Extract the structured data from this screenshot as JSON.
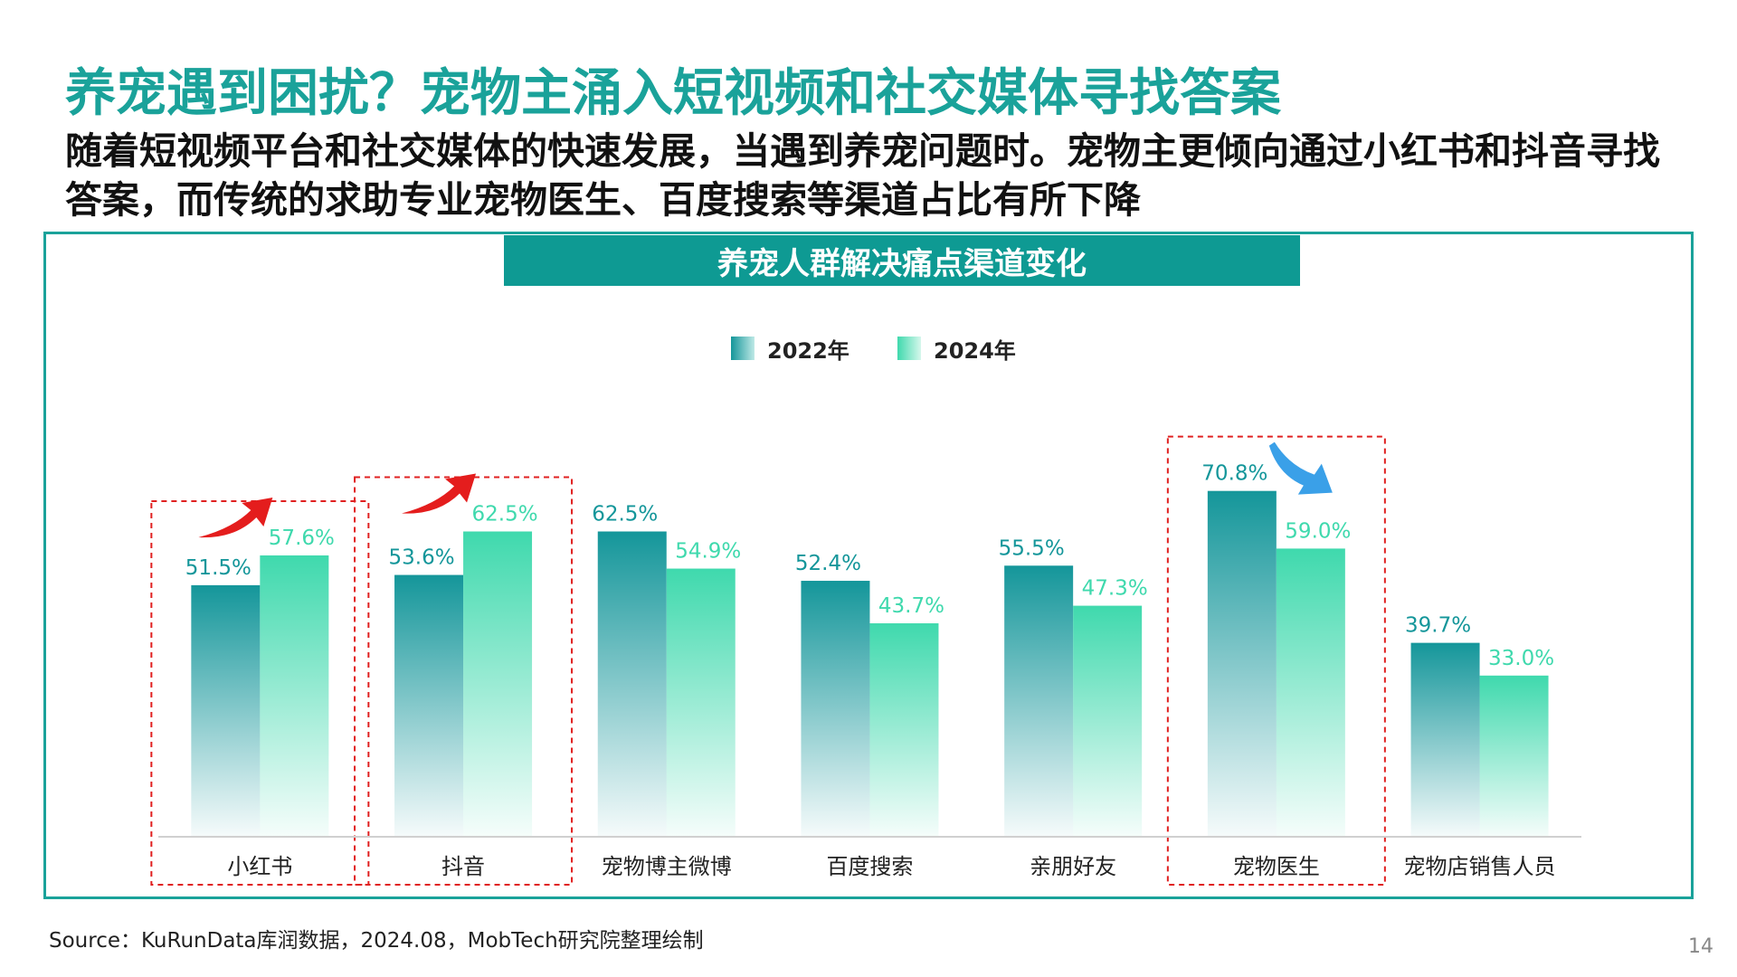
{
  "title": "养宠遇到困扰？宠物主涌入短视频和社交媒体寻找答案",
  "subtitle": "随着短视频平台和社交媒体的快速发展，当遇到养宠问题时。宠物主更倾向通过小红书和抖音寻找答案，而传统的求助专业宠物医生、百度搜索等渠道占比有所下降",
  "source": "Source：KuRunData库润数据，2024.08，MobTech研究院整理绘制",
  "page_number": "14",
  "colors": {
    "accent": "#1aa29a",
    "banner": "#0e9a93",
    "series_2022": "#14969a",
    "series_2024": "#3fd9ad",
    "highlight_box": "#e02020",
    "arrow_up": "#e41d1d",
    "arrow_down": "#3aa0e8"
  },
  "chart_data": {
    "type": "bar",
    "title": "养宠人群解决痛点渠道变化",
    "categories": [
      "小红书",
      "抖音",
      "宠物博主微博",
      "百度搜索",
      "亲朋好友",
      "宠物医生",
      "宠物店销售人员"
    ],
    "series": [
      {
        "name": "2022年",
        "values": [
          51.5,
          53.6,
          62.5,
          52.4,
          55.5,
          70.8,
          39.7
        ],
        "labels": [
          "51.5%",
          "53.6%",
          "62.5%",
          "52.4%",
          "55.5%",
          "70.8%",
          "39.7%"
        ]
      },
      {
        "name": "2024年",
        "values": [
          57.6,
          62.5,
          54.9,
          43.7,
          47.3,
          59.0,
          33.0
        ],
        "labels": [
          "57.6%",
          "62.5%",
          "54.9%",
          "43.7%",
          "47.3%",
          "59.0%",
          "33.0%"
        ]
      }
    ],
    "legend_position": "top-center",
    "grid": false,
    "highlighted_categories": [
      {
        "category": "小红书",
        "trend": "up"
      },
      {
        "category": "抖音",
        "trend": "up"
      },
      {
        "category": "宠物医生",
        "trend": "down"
      }
    ]
  }
}
